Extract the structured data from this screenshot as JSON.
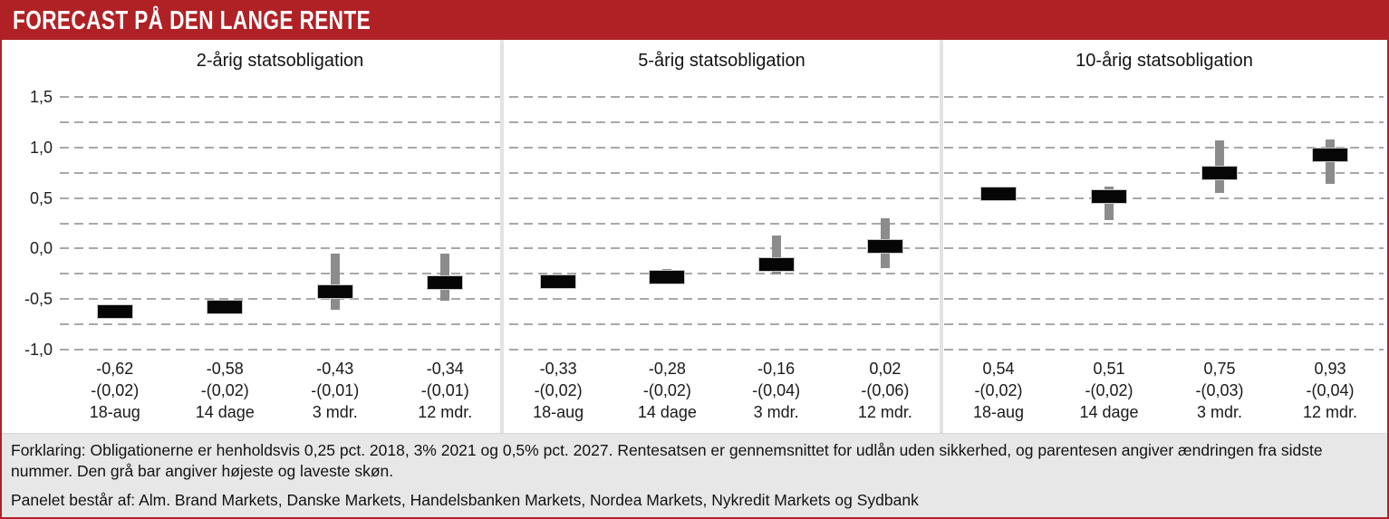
{
  "header": {
    "title": "FORECAST PÅ DEN LANGE RENTE",
    "bg_color": "#b02125",
    "text_color": "#ffffff"
  },
  "axis": {
    "tick_labels": [
      "1,5",
      "1,0",
      "0,5",
      "0,0",
      "-0,5",
      "-1,0"
    ],
    "tick_values": [
      1.5,
      1.0,
      0.5,
      0.0,
      -0.5,
      -1.0
    ],
    "grid_step": 0.25
  },
  "chart_data": {
    "type": "bar",
    "title": "Forecast på den lange rente",
    "ylim": [
      -1.0,
      1.5
    ],
    "grid": "dashed horizontal lines every 0.25",
    "legend_position": "none",
    "bar_color": "#060606",
    "range_color": "#8c8c8c",
    "categories": [
      "18-aug",
      "14 dage",
      "3 mdr.",
      "12 mdr."
    ],
    "panels": [
      {
        "title": "2-årig statsobligation",
        "points": [
          {
            "period": "18-aug",
            "value": -0.62,
            "value_label": "-0,62",
            "change_label": "-(0,02)",
            "low": null,
            "high": null
          },
          {
            "period": "14 dage",
            "value": -0.58,
            "value_label": "-0,58",
            "change_label": "-(0,02)",
            "low": null,
            "high": null
          },
          {
            "period": "3 mdr.",
            "value": -0.43,
            "value_label": "-0,43",
            "change_label": "-(0,01)",
            "low": -0.61,
            "high": -0.05
          },
          {
            "period": "12 mdr.",
            "value": -0.34,
            "value_label": "-0,34",
            "change_label": "-(0,01)",
            "low": -0.52,
            "high": -0.05
          }
        ]
      },
      {
        "title": "5-årig statsobligation",
        "points": [
          {
            "period": "18-aug",
            "value": -0.33,
            "value_label": "-0,33",
            "change_label": "-(0,02)",
            "low": null,
            "high": null
          },
          {
            "period": "14 dage",
            "value": -0.28,
            "value_label": "-0,28",
            "change_label": "-(0,02)",
            "low": -0.32,
            "high": -0.2
          },
          {
            "period": "3 mdr.",
            "value": -0.16,
            "value_label": "-0,16",
            "change_label": "-(0,04)",
            "low": -0.26,
            "high": 0.13
          },
          {
            "period": "12 mdr.",
            "value": 0.02,
            "value_label": "0,02",
            "change_label": "-(0,06)",
            "low": -0.19,
            "high": 0.3
          }
        ]
      },
      {
        "title": "10-årig statsobligation",
        "points": [
          {
            "period": "18-aug",
            "value": 0.54,
            "value_label": "0,54",
            "change_label": "-(0,02)",
            "low": null,
            "high": null
          },
          {
            "period": "14 dage",
            "value": 0.51,
            "value_label": "0,51",
            "change_label": "-(0,02)",
            "low": 0.28,
            "high": 0.61
          },
          {
            "period": "3 mdr.",
            "value": 0.75,
            "value_label": "0,75",
            "change_label": "-(0,03)",
            "low": 0.55,
            "high": 1.07
          },
          {
            "period": "12 mdr.",
            "value": 0.93,
            "value_label": "0,93",
            "change_label": "-(0,04)",
            "low": 0.64,
            "high": 1.08
          }
        ]
      }
    ]
  },
  "footer": {
    "explanation": "Forklaring: Obligationerne er henholdsvis 0,25 pct. 2018, 3% 2021 og 0,5% pct. 2027. Rentesatsen er gennemsnittet for udlån uden sikkerhed, og parentesen angiver ændringen fra sidste nummer. Den grå bar angiver højeste og laveste skøn.",
    "panel": "Panelet består af: Alm. Brand Markets, Danske Markets, Handelsbanken Markets, Nordea Markets, Nykredit Markets og Sydbank"
  }
}
